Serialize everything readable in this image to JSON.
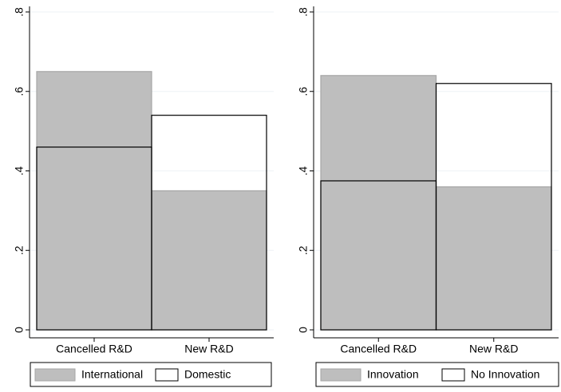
{
  "chart_data": [
    {
      "type": "bar",
      "categories": [
        "Cancelled R&D",
        "New R&D"
      ],
      "series": [
        {
          "name": "International",
          "color": "#bebebe",
          "edgecolor": "#a6a6a6",
          "values": [
            0.65,
            0.35
          ]
        },
        {
          "name": "Domestic",
          "color": "none",
          "edgecolor": "#000000",
          "values": [
            0.46,
            0.54
          ]
        }
      ],
      "ylim": [
        0,
        0.8
      ],
      "yticks": [
        0,
        {
          "value": 0.2,
          "label": ".2"
        },
        {
          "value": 0.4,
          "label": ".4"
        },
        {
          "value": 0.6,
          "label": ".6"
        },
        {
          "value": 0.8,
          "label": ".8"
        }
      ],
      "grid": true
    },
    {
      "type": "bar",
      "categories": [
        "Cancelled R&D",
        "New R&D"
      ],
      "series": [
        {
          "name": "Innovation",
          "color": "#bebebe",
          "edgecolor": "#a6a6a6",
          "values": [
            0.64,
            0.36
          ]
        },
        {
          "name": "No Innovation",
          "color": "none",
          "edgecolor": "#000000",
          "values": [
            0.375,
            0.62
          ]
        }
      ],
      "ylim": [
        0,
        0.8
      ],
      "yticks": [
        0,
        {
          "value": 0.2,
          "label": ".2"
        },
        {
          "value": 0.4,
          "label": ".4"
        },
        {
          "value": 0.6,
          "label": ".6"
        },
        {
          "value": 0.8,
          "label": ".8"
        }
      ],
      "grid": true
    }
  ]
}
